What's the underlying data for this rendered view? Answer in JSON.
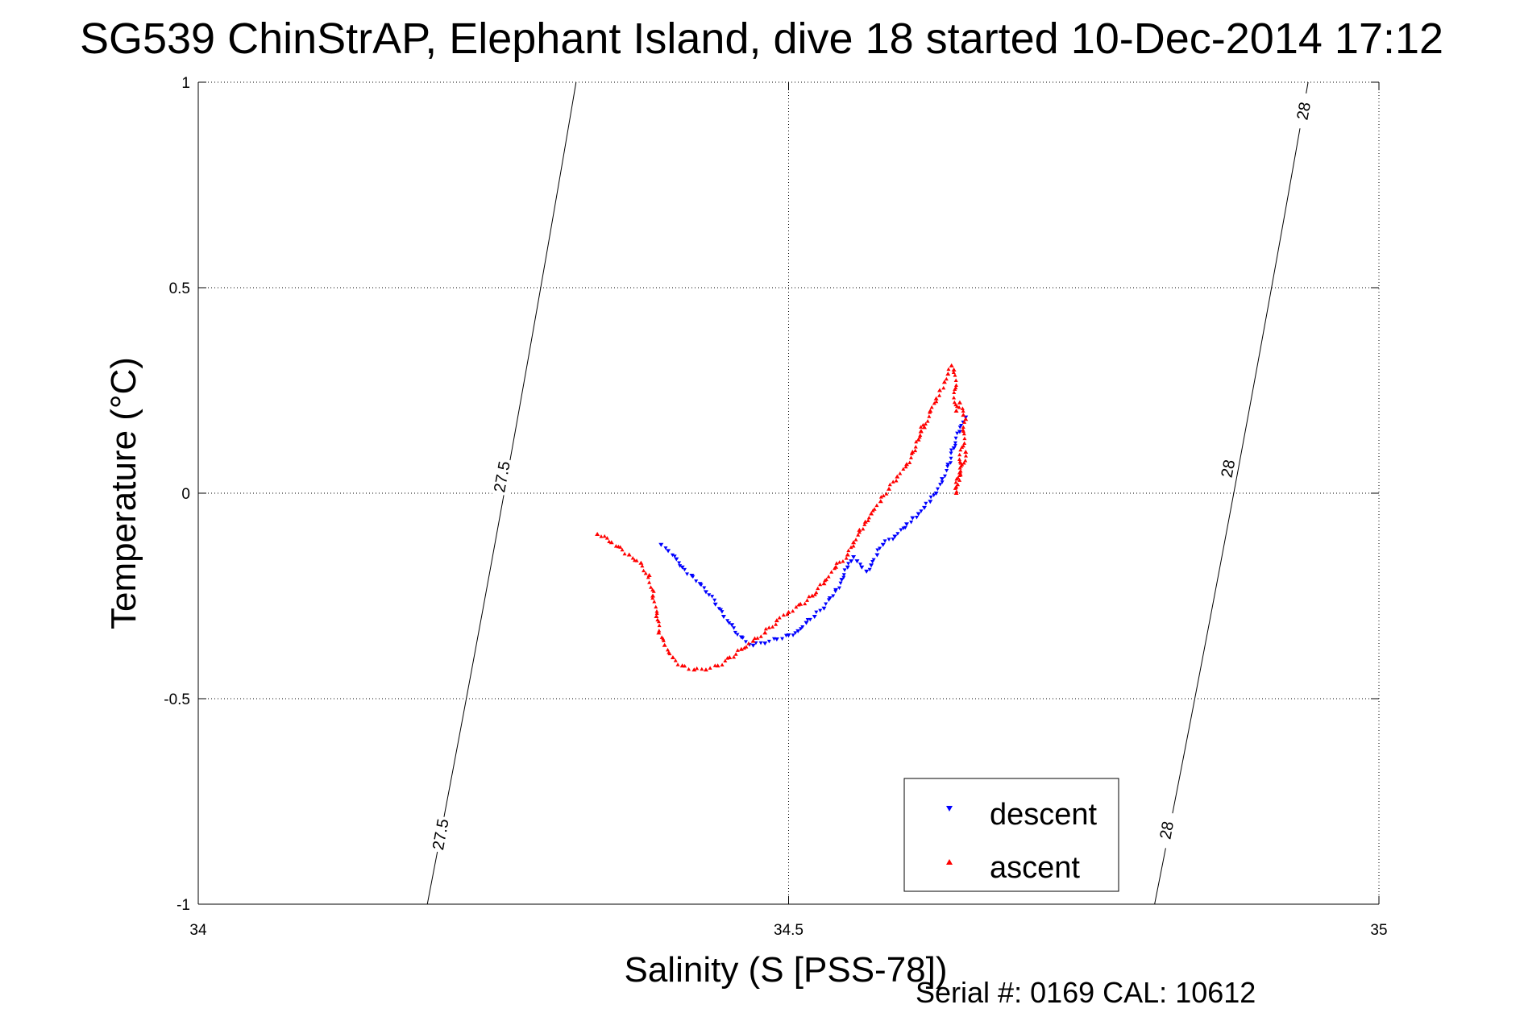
{
  "chart_data": {
    "type": "scatter",
    "title": "SG539 ChinStrAP, Elephant Island, dive 18 started 10-Dec-2014 17:12",
    "xlabel": "Salinity (S [PSS-78])",
    "ylabel": "Temperature (°C)",
    "xlim": [
      34,
      35
    ],
    "ylim": [
      -1,
      1
    ],
    "x_ticks": [
      34,
      34.5,
      35
    ],
    "x_tick_labels": [
      "34",
      "34.5",
      "35"
    ],
    "y_ticks": [
      -1,
      -0.5,
      0,
      0.5,
      1
    ],
    "y_tick_labels": [
      "-1",
      "-0.5",
      "0",
      "0.5",
      "1"
    ],
    "grid": true,
    "legend_position": "bottom-right",
    "series": [
      {
        "name": "descent",
        "color": "#0000ff",
        "marker": "triangle-down",
        "x": [
          34.392,
          34.398,
          34.405,
          34.41,
          34.418,
          34.425,
          34.43,
          34.438,
          34.445,
          34.452,
          34.46,
          34.47,
          34.48,
          34.49,
          34.5,
          34.508,
          34.515,
          34.522,
          34.53,
          34.535,
          34.54,
          34.545,
          34.55,
          34.553,
          34.555,
          34.558,
          34.562,
          34.566,
          34.57,
          34.575,
          34.58,
          34.59,
          34.6,
          34.605,
          34.61,
          34.615,
          34.62,
          34.625,
          34.63,
          34.635,
          34.64,
          34.645,
          34.65
        ],
        "y": [
          -0.125,
          -0.14,
          -0.16,
          -0.18,
          -0.2,
          -0.22,
          -0.24,
          -0.27,
          -0.3,
          -0.32,
          -0.35,
          -0.37,
          -0.365,
          -0.355,
          -0.345,
          -0.335,
          -0.315,
          -0.3,
          -0.28,
          -0.255,
          -0.235,
          -0.21,
          -0.18,
          -0.165,
          -0.155,
          -0.165,
          -0.18,
          -0.19,
          -0.175,
          -0.15,
          -0.125,
          -0.105,
          -0.075,
          -0.06,
          -0.05,
          -0.035,
          -0.02,
          0.0,
          0.035,
          0.07,
          0.11,
          0.15,
          0.185
        ]
      },
      {
        "name": "ascent",
        "color": "#ff0000",
        "marker": "triangle-up",
        "x": [
          34.338,
          34.35,
          34.365,
          34.375,
          34.382,
          34.385,
          34.388,
          34.39,
          34.395,
          34.402,
          34.41,
          34.42,
          34.43,
          34.44,
          34.45,
          34.46,
          34.47,
          34.48,
          34.49,
          34.5,
          34.51,
          34.52,
          34.53,
          34.54,
          34.55,
          34.555,
          34.56,
          34.565,
          34.57,
          34.578,
          34.585,
          34.592,
          34.6,
          34.605,
          34.61,
          34.615,
          34.612,
          34.62,
          34.625,
          34.628,
          34.632,
          34.635,
          34.638,
          34.64,
          34.642,
          34.645,
          34.648,
          34.65,
          34.642,
          34.645,
          34.65
        ],
        "y": [
          -0.1,
          -0.12,
          -0.15,
          -0.17,
          -0.2,
          -0.25,
          -0.3,
          -0.34,
          -0.37,
          -0.4,
          -0.42,
          -0.43,
          -0.43,
          -0.42,
          -0.4,
          -0.38,
          -0.36,
          -0.34,
          -0.31,
          -0.29,
          -0.27,
          -0.25,
          -0.22,
          -0.18,
          -0.15,
          -0.12,
          -0.09,
          -0.07,
          -0.05,
          -0.02,
          0.01,
          0.04,
          0.07,
          0.1,
          0.13,
          0.16,
          0.15,
          0.2,
          0.23,
          0.25,
          0.27,
          0.29,
          0.31,
          0.3,
          0.2,
          0.22,
          0.19,
          0.18,
          0.0,
          0.05,
          0.1
        ]
      }
    ],
    "contours": [
      {
        "label": "27.5",
        "points": [
          [
            34.194,
            -1
          ],
          [
            34.32,
            1
          ]
        ],
        "label_positions": [
          [
            34.205,
            -0.83
          ],
          [
            34.257,
            0.04
          ]
        ]
      },
      {
        "label": "28",
        "points": [
          [
            34.81,
            -1
          ],
          [
            34.94,
            1
          ]
        ],
        "label_positions": [
          [
            34.82,
            -0.82
          ],
          [
            34.872,
            0.06
          ],
          [
            34.936,
            0.93
          ]
        ]
      }
    ],
    "annotations": [
      "Serial #: 0169 CAL: 10612"
    ]
  }
}
